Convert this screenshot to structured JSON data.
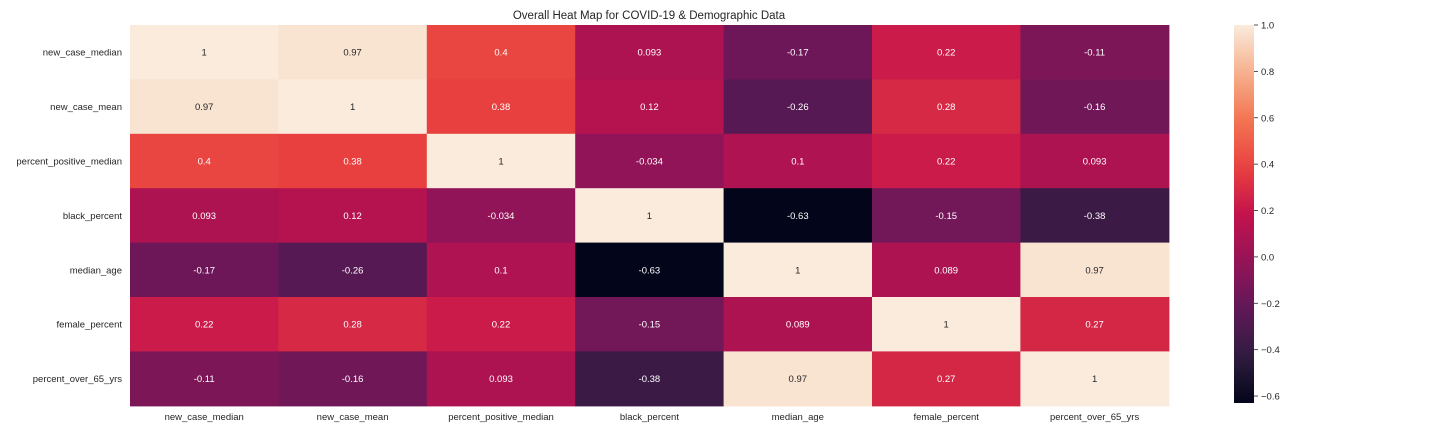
{
  "chart_data": {
    "type": "heatmap",
    "title": "Overall Heat Map for COVID-19 & Demographic Data",
    "xlabel": "",
    "ylabel": "",
    "x_labels": [
      "new_case_median",
      "new_case_mean",
      "percent_positive_median",
      "black_percent",
      "median_age",
      "female_percent",
      "percent_over_65_yrs"
    ],
    "y_labels": [
      "new_case_median",
      "new_case_mean",
      "percent_positive_median",
      "black_percent",
      "median_age",
      "female_percent",
      "percent_over_65_yrs"
    ],
    "values": [
      [
        1,
        0.97,
        0.4,
        0.093,
        -0.17,
        0.22,
        -0.11
      ],
      [
        0.97,
        1,
        0.38,
        0.12,
        -0.26,
        0.28,
        -0.16
      ],
      [
        0.4,
        0.38,
        1,
        -0.034,
        0.1,
        0.22,
        0.093
      ],
      [
        0.093,
        0.12,
        -0.034,
        1,
        -0.63,
        -0.15,
        -0.38
      ],
      [
        -0.17,
        -0.26,
        0.1,
        -0.63,
        1,
        0.089,
        0.97
      ],
      [
        0.22,
        0.28,
        0.22,
        -0.15,
        0.089,
        1,
        0.27
      ],
      [
        -0.11,
        -0.16,
        0.093,
        -0.38,
        0.97,
        0.27,
        1
      ]
    ],
    "annotations": [
      [
        "1",
        "0.97",
        "0.4",
        "0.093",
        "-0.17",
        "0.22",
        "-0.11"
      ],
      [
        "0.97",
        "1",
        "0.38",
        "0.12",
        "-0.26",
        "0.28",
        "-0.16"
      ],
      [
        "0.4",
        "0.38",
        "1",
        "-0.034",
        "0.1",
        "0.22",
        "0.093"
      ],
      [
        "0.093",
        "0.12",
        "-0.034",
        "1",
        "-0.63",
        "-0.15",
        "-0.38"
      ],
      [
        "-0.17",
        "-0.26",
        "0.1",
        "-0.63",
        "1",
        "0.089",
        "0.97"
      ],
      [
        "0.22",
        "0.28",
        "0.22",
        "-0.15",
        "0.089",
        "1",
        "0.27"
      ],
      [
        "-0.11",
        "-0.16",
        "0.093",
        "-0.38",
        "0.97",
        "0.27",
        "1"
      ]
    ],
    "vmin": -0.63,
    "vmax": 1.0,
    "colormap": "rocket",
    "colorbar": {
      "ticks": [
        1.0,
        0.8,
        0.6,
        0.4,
        0.2,
        0.0,
        -0.2,
        -0.4,
        -0.6
      ],
      "tick_labels": [
        "1.0",
        "0.8",
        "0.6",
        "0.4",
        "0.2",
        "0.0",
        "−0.2",
        "−0.4",
        "−0.6"
      ]
    },
    "grid": false
  }
}
